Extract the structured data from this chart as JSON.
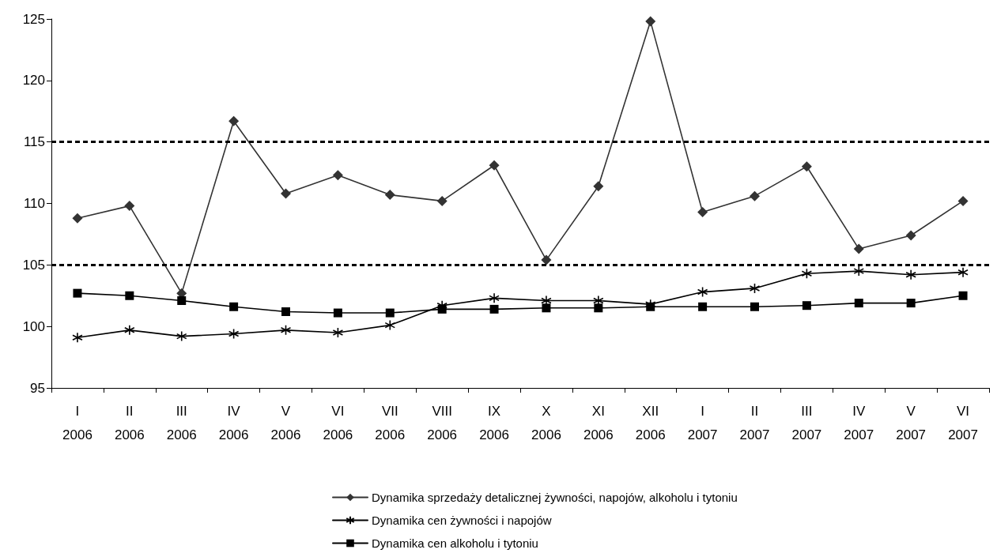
{
  "chart_data": {
    "type": "line",
    "categories": [
      "I\n2006",
      "II\n2006",
      "III\n2006",
      "IV\n2006",
      "V\n2006",
      "VI\n2006",
      "VII\n2006",
      "VIII\n2006",
      "IX\n2006",
      "X\n2006",
      "XI\n2006",
      "XII\n2006",
      "I\n2007",
      "II\n2007",
      "III\n2007",
      "IV\n2007",
      "V\n2007",
      "VI\n2007"
    ],
    "series": [
      {
        "name": "Dynamika sprzedaży detalicznej żywności, napojów, alkoholu i tytoniu",
        "color": "#333333",
        "marker": "diamond",
        "values": [
          108.8,
          109.8,
          102.7,
          116.7,
          110.8,
          112.3,
          110.7,
          110.2,
          113.1,
          105.4,
          111.4,
          124.8,
          109.3,
          110.6,
          113.0,
          106.3,
          107.4,
          110.2
        ]
      },
      {
        "name": "Dynamika cen żywności i napojów",
        "color": "#000000",
        "marker": "cross",
        "values": [
          99.1,
          99.7,
          99.2,
          99.4,
          99.7,
          99.5,
          100.1,
          101.7,
          102.3,
          102.1,
          102.1,
          101.8,
          102.8,
          103.1,
          104.3,
          104.5,
          104.2,
          104.4
        ]
      },
      {
        "name": "Dynamika cen alkoholu i tytoniu",
        "color": "#000000",
        "marker": "square",
        "values": [
          102.7,
          102.5,
          102.1,
          101.6,
          101.2,
          101.1,
          101.1,
          101.4,
          101.4,
          101.5,
          101.5,
          101.6,
          101.6,
          101.6,
          101.7,
          101.9,
          101.9,
          102.5
        ]
      }
    ],
    "ylim": [
      95,
      125
    ],
    "yticks": [
      95,
      100,
      105,
      110,
      115,
      120,
      125
    ],
    "ref_lines": [
      {
        "axis": "y",
        "value": 105,
        "color": "#000000",
        "line_style": "dashed"
      },
      {
        "axis": "y",
        "value": 115,
        "color": "#000000",
        "line_style": "dashed"
      }
    ],
    "grid": false,
    "legend": "bottom",
    "line_style": "solid"
  }
}
